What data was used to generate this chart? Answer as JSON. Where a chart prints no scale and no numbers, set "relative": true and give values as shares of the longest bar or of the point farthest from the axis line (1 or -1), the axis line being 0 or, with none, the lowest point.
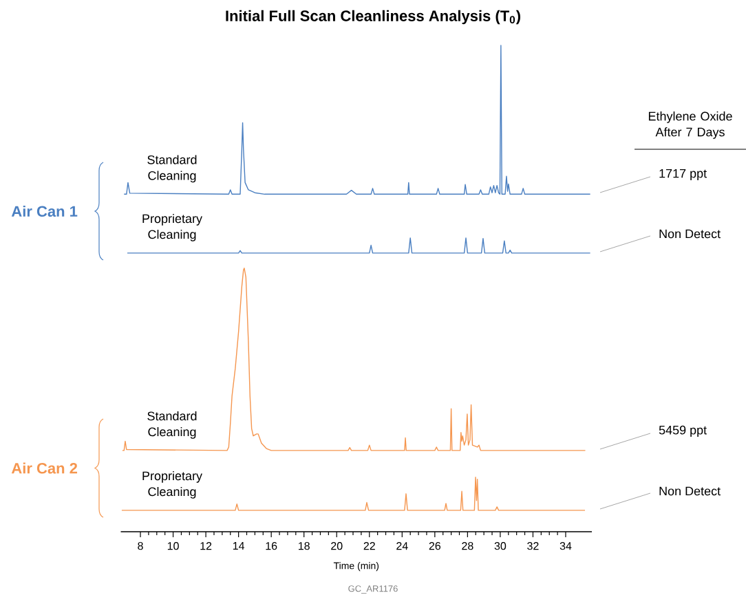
{
  "chart_data": {
    "type": "line",
    "relative": true,
    "title": "Initial Full Scan Cleanliness Analysis (T$_{0}$)",
    "xlabel": "Time (min)",
    "xlim": [
      6.8,
      35.6
    ],
    "xticks": [
      8,
      10,
      12,
      14,
      16,
      18,
      20,
      22,
      24,
      26,
      28,
      30,
      32,
      34
    ],
    "annotations": [
      "Ethylene Oxide After 7 Days",
      "Air Can 1",
      "1717 ppt",
      "Non Detect",
      "Air Can 2",
      "5459 ppt",
      "Non Detect",
      "GC_AR1176"
    ],
    "series": [
      {
        "name": "Standard Cleaning",
        "color": "#4a7fc1",
        "x": [
          7.0,
          7.15,
          7.24,
          7.35,
          13.4,
          13.5,
          13.6,
          14.1,
          14.2,
          14.25,
          14.3,
          14.4,
          14.6,
          15.0,
          15.6,
          20.6,
          20.9,
          21.2,
          22.1,
          22.2,
          22.3,
          24.35,
          24.4,
          24.45,
          26.1,
          26.2,
          26.3,
          27.8,
          27.86,
          27.95,
          28.7,
          28.8,
          28.9,
          29.3,
          29.4,
          29.5,
          29.6,
          29.7,
          29.8,
          29.9,
          29.98,
          30.04,
          30.1,
          30.3,
          30.38,
          30.45,
          30.5,
          30.6,
          31.3,
          31.4,
          31.5,
          35.5
        ],
        "values": [
          0.694,
          0.694,
          0.718,
          0.696,
          0.694,
          0.703,
          0.694,
          0.694,
          0.786,
          0.841,
          0.786,
          0.718,
          0.703,
          0.697,
          0.694,
          0.694,
          0.702,
          0.694,
          0.694,
          0.706,
          0.694,
          0.694,
          0.718,
          0.694,
          0.694,
          0.706,
          0.694,
          0.694,
          0.714,
          0.694,
          0.694,
          0.703,
          0.694,
          0.694,
          0.709,
          0.697,
          0.712,
          0.697,
          0.712,
          0.697,
          0.694,
          1.0,
          0.694,
          0.694,
          0.731,
          0.7,
          0.715,
          0.694,
          0.694,
          0.706,
          0.694,
          0.694
        ]
      },
      {
        "name": "Proprietary Cleaning",
        "color": "#4a7fc1",
        "x": [
          7.2,
          14.0,
          14.1,
          14.2,
          22.0,
          22.1,
          22.2,
          24.4,
          24.5,
          24.6,
          27.8,
          27.9,
          28.0,
          28.85,
          28.95,
          29.05,
          30.15,
          30.25,
          30.35,
          30.5,
          30.6,
          30.7,
          35.5
        ],
        "values": [
          0.573,
          0.573,
          0.578,
          0.573,
          0.573,
          0.589,
          0.573,
          0.573,
          0.604,
          0.573,
          0.573,
          0.604,
          0.573,
          0.573,
          0.603,
          0.573,
          0.573,
          0.598,
          0.573,
          0.573,
          0.579,
          0.573,
          0.573
        ]
      },
      {
        "name": "Standard Cleaning",
        "color": "#f5964f",
        "x": [
          6.9,
          7.0,
          7.07,
          7.15,
          13.3,
          13.4,
          13.5,
          13.6,
          13.8,
          14.0,
          14.2,
          14.3,
          14.35,
          14.45,
          14.6,
          14.7,
          14.8,
          14.9,
          15.1,
          15.2,
          15.4,
          15.7,
          16.0,
          20.7,
          20.8,
          20.9,
          21.9,
          22.0,
          22.1,
          24.15,
          24.2,
          24.25,
          26.0,
          26.1,
          26.2,
          26.95,
          27.0,
          27.05,
          27.55,
          27.6,
          27.65,
          27.7,
          27.8,
          27.9,
          27.98,
          28.05,
          28.15,
          28.22,
          28.3,
          28.6,
          28.7,
          28.8,
          35.2
        ],
        "values": [
          0.167,
          0.167,
          0.186,
          0.169,
          0.167,
          0.174,
          0.223,
          0.279,
          0.336,
          0.411,
          0.504,
          0.538,
          0.542,
          0.523,
          0.392,
          0.279,
          0.212,
          0.197,
          0.201,
          0.201,
          0.182,
          0.171,
          0.167,
          0.167,
          0.173,
          0.167,
          0.167,
          0.178,
          0.167,
          0.167,
          0.193,
          0.167,
          0.167,
          0.174,
          0.167,
          0.167,
          0.253,
          0.167,
          0.167,
          0.204,
          0.186,
          0.197,
          0.178,
          0.189,
          0.242,
          0.178,
          0.189,
          0.261,
          0.178,
          0.174,
          0.178,
          0.167,
          0.167
        ]
      },
      {
        "name": "Proprietary Cleaning",
        "color": "#f5964f",
        "x": [
          6.86,
          13.8,
          13.9,
          14.0,
          21.75,
          21.84,
          21.95,
          24.15,
          24.24,
          24.33,
          26.6,
          26.68,
          26.76,
          27.58,
          27.65,
          27.72,
          28.42,
          28.49,
          28.55,
          28.6,
          28.66,
          29.7,
          29.8,
          29.9,
          35.18
        ],
        "values": [
          0.044,
          0.044,
          0.057,
          0.044,
          0.044,
          0.06,
          0.044,
          0.044,
          0.078,
          0.044,
          0.044,
          0.058,
          0.044,
          0.044,
          0.083,
          0.044,
          0.044,
          0.112,
          0.064,
          0.108,
          0.044,
          0.044,
          0.051,
          0.044,
          0.044
        ]
      }
    ]
  }
}
